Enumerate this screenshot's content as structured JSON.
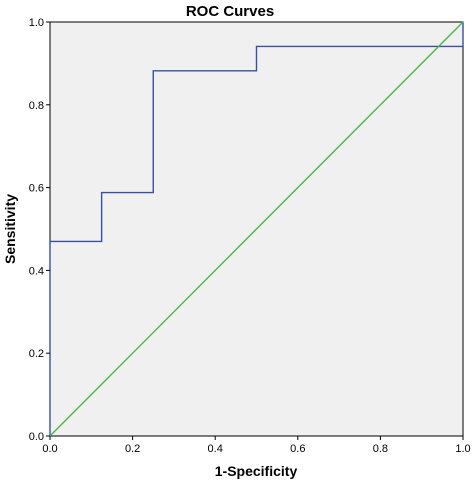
{
  "chart_data": {
    "type": "line",
    "title": "ROC Curves",
    "xlabel": "1-Specificity",
    "ylabel": "Sensitivity",
    "xlim": [
      0,
      1
    ],
    "ylim": [
      0,
      1
    ],
    "xticks": [
      "0.0",
      "0.2",
      "0.4",
      "0.6",
      "0.8",
      "1.0"
    ],
    "yticks": [
      "0.0",
      "0.2",
      "0.4",
      "0.6",
      "0.8",
      "1.0"
    ],
    "grid": false,
    "legend": "none",
    "background_color": "#f0f0f0",
    "series": [
      {
        "style": "step",
        "color": "#3a4fa0",
        "x": [
          0.0,
          0.0,
          0.125,
          0.125,
          0.25,
          0.25,
          0.5,
          0.5,
          1.0,
          1.0
        ],
        "y": [
          0.0,
          0.47,
          0.47,
          0.588,
          0.588,
          0.882,
          0.882,
          0.941,
          0.941,
          1.0
        ]
      },
      {
        "style": "reference",
        "color": "#4bb54b",
        "x": [
          0.0,
          1.0
        ],
        "y": [
          0.0,
          1.0
        ]
      }
    ]
  }
}
